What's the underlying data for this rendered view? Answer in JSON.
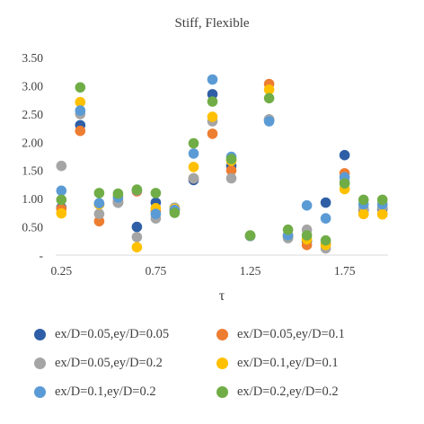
{
  "chart_data": {
    "type": "scatter",
    "title": "Stiff, Flexible",
    "xlabel": "τ",
    "ylabel": "",
    "xlim": [
      0.22,
      1.98
    ],
    "ylim": [
      0,
      3.5
    ],
    "x_ticks": [
      0.25,
      0.75,
      1.25,
      1.75
    ],
    "x_tick_labels": [
      "0.25",
      "0.75",
      "1.25",
      "1.75"
    ],
    "y_ticks": [
      0,
      0.5,
      1.0,
      1.5,
      2.0,
      2.5,
      3.0,
      3.5
    ],
    "y_tick_labels": [
      "-",
      "0.50",
      "1.00",
      "1.50",
      "2.00",
      "2.50",
      "3.00",
      "3.50"
    ],
    "grid": false,
    "legend_position": "bottom",
    "x": [
      0.25,
      0.35,
      0.45,
      0.55,
      0.65,
      0.75,
      0.85,
      0.95,
      1.05,
      1.15,
      1.25,
      1.35,
      1.45,
      1.55,
      1.65,
      1.75,
      1.85,
      1.95
    ],
    "series": [
      {
        "name": "ex/D=0.05,ey/D=0.05",
        "color": "#2E5FA6",
        "values": [
          0.84,
          2.3,
          0.9,
          0.93,
          0.5,
          0.93,
          0.8,
          1.33,
          2.85,
          1.58,
          0.34,
          2.4,
          0.34,
          0.25,
          0.93,
          1.77,
          0.8,
          0.82
        ]
      },
      {
        "name": "ex/D=0.05,ey/D=0.1",
        "color": "#ED7D31",
        "values": [
          0.82,
          2.2,
          0.6,
          0.96,
          1.13,
          0.78,
          0.81,
          1.36,
          2.15,
          1.5,
          0.34,
          3.03,
          0.32,
          0.18,
          0.2,
          1.45,
          0.73,
          0.73
        ]
      },
      {
        "name": "ex/D=0.05,ey/D=0.2",
        "color": "#A5A5A5",
        "values": [
          1.58,
          2.5,
          0.73,
          0.93,
          0.32,
          0.65,
          0.84,
          1.36,
          2.37,
          1.36,
          0.34,
          2.4,
          0.3,
          0.45,
          0.12,
          1.3,
          0.83,
          0.85
        ]
      },
      {
        "name": "ex/D=0.1,ey/D=0.1",
        "color": "#FFC000",
        "values": [
          0.74,
          2.71,
          0.9,
          1.05,
          0.14,
          0.83,
          0.82,
          1.56,
          2.45,
          1.67,
          0.34,
          2.93,
          0.35,
          0.28,
          0.18,
          1.17,
          0.73,
          0.72
        ]
      },
      {
        "name": "ex/D=0.1,ey/D=0.2",
        "color": "#5B9BD5",
        "values": [
          1.14,
          2.56,
          0.92,
          1.02,
          1.15,
          0.73,
          0.8,
          1.8,
          3.11,
          1.74,
          0.34,
          2.37,
          0.35,
          0.88,
          0.65,
          1.38,
          0.9,
          0.9
        ]
      },
      {
        "name": "ex/D=0.2,ey/D=0.2",
        "color": "#70AD47",
        "values": [
          0.98,
          2.97,
          1.1,
          1.09,
          1.16,
          1.1,
          0.75,
          1.98,
          2.72,
          1.7,
          0.35,
          2.78,
          0.45,
          0.35,
          0.26,
          1.27,
          0.98,
          0.98
        ]
      }
    ]
  }
}
